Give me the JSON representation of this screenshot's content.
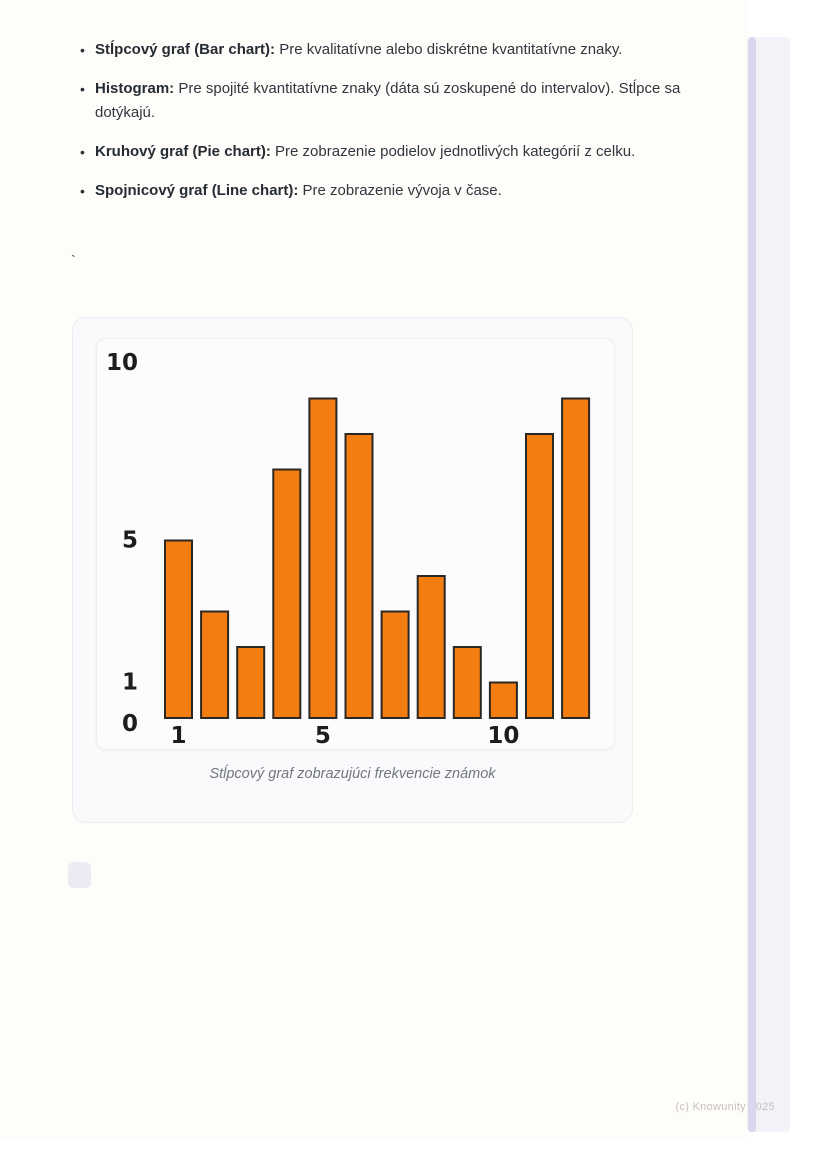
{
  "list": {
    "bullet_glyph": "•",
    "items": [
      {
        "bold": "Stĺpcový graf (Bar chart):",
        "text": " Pre kvalitatívne alebo diskrétne kvantitatívne znaky."
      },
      {
        "bold": "Histogram:",
        "text": " Pre spojité kvantitatívne znaky (dáta sú zoskupené do intervalov). Stĺpce sa dotýkajú."
      },
      {
        "bold": "Kruhový graf (Pie chart):",
        "text": " Pre zobrazenie podielov jednotlivých kategórií z celku."
      },
      {
        "bold": "Spojnicový graf (Line chart):",
        "text": " Pre zobrazenie vývoja v čase."
      }
    ]
  },
  "stray_text": "`",
  "chart_data": {
    "type": "bar",
    "x": [
      1,
      2,
      3,
      4,
      5,
      6,
      7,
      8,
      9,
      10,
      11,
      12
    ],
    "values": [
      5,
      3,
      2,
      7,
      9,
      8,
      3,
      4,
      2,
      1,
      8,
      9
    ],
    "y_ticks": [
      0,
      1,
      5,
      10
    ],
    "x_ticks": [
      1,
      5,
      10
    ],
    "ylim": [
      0,
      10.6
    ],
    "grid": false,
    "legend": false,
    "bar_color": "#F47D12",
    "bar_edge_color": "#2B2722",
    "tick_label_color": "#1D1D1B",
    "caption": "Stĺpcový graf zobrazujúci frekvencie známok"
  },
  "footer": {
    "copyright": "(c) Knowunity 2025"
  }
}
